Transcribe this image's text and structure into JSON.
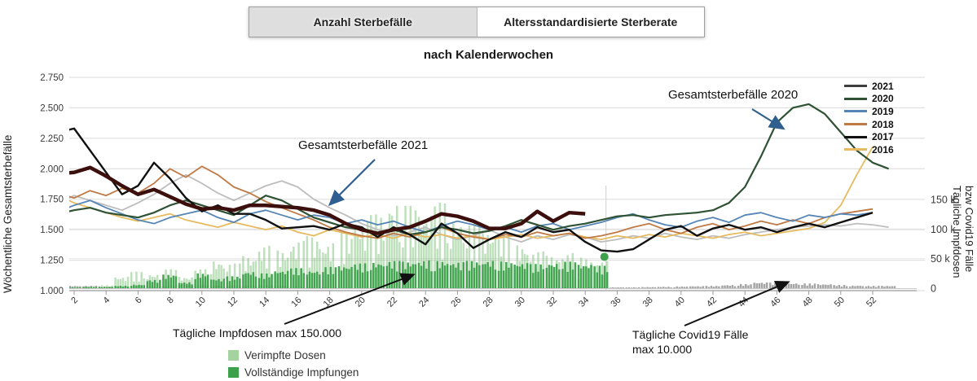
{
  "tabs": [
    {
      "label": "Anzahl Sterbefälle",
      "active": true
    },
    {
      "label": "Altersstandardisierte Sterberate",
      "active": false
    }
  ],
  "title": "nach Kalenderwochen",
  "y_axis_left": {
    "title": "Wöchentliche Gesamtsterbefälle",
    "ticks": [
      {
        "label": "2.750",
        "value": 2750
      },
      {
        "label": "2.500",
        "value": 2500
      },
      {
        "label": "2.250",
        "value": 2250
      },
      {
        "label": "2.000",
        "value": 2000
      },
      {
        "label": "1.750",
        "value": 1750
      },
      {
        "label": "1.500",
        "value": 1500
      },
      {
        "label": "1.250",
        "value": 1250
      },
      {
        "label": "1.000",
        "value": 1000
      }
    ]
  },
  "y_axis_right": {
    "title_line1": "Tägliche Impfdosen",
    "title_line2": "bzw Covid19 Fälle",
    "ticks": [
      {
        "label": "150 k",
        "value_k": 150
      },
      {
        "label": "100 k",
        "value_k": 100
      },
      {
        "label": "50 k",
        "value_k": 50
      },
      {
        "label": "0",
        "value_k": 0
      }
    ]
  },
  "legend": [
    {
      "label": "2021",
      "color": "#3f3f3f"
    },
    {
      "label": "2020",
      "color": "#2e5233"
    },
    {
      "label": "2019",
      "color": "#5585b5"
    },
    {
      "label": "2018",
      "color": "#c07a45"
    },
    {
      "label": "2017",
      "color": "#101010"
    },
    {
      "label": "2016",
      "color": "#e6bb5f"
    }
  ],
  "bottom_legend": [
    {
      "label": "Verimpfte Dosen",
      "color": "#a5d3a0"
    },
    {
      "label": "Vollständige Impfungen",
      "color": "#3da14b"
    }
  ],
  "annotations": {
    "gesamt_2021": "Gesamtsterbefälle 2021",
    "gesamt_2020": "Gesamtsterbefälle 2020",
    "impfdosen": "Tägliche Impfdosen max 150.000",
    "covid_line1": "Tägliche Covid19 Fälle",
    "covid_line2": "max 10.000"
  },
  "chart_data": {
    "type": "line",
    "x_label": "Kalenderwoche",
    "x_ticks": [
      2,
      4,
      6,
      8,
      10,
      12,
      14,
      16,
      18,
      20,
      22,
      24,
      26,
      28,
      30,
      32,
      34,
      36,
      38,
      40,
      42,
      44,
      46,
      48,
      50,
      52
    ],
    "y_left_range": [
      1000,
      2750
    ],
    "y_right_range_k": [
      0,
      150
    ],
    "reference_line_week": 35.3,
    "series": [
      {
        "name": "2021",
        "color": "#3c0f0d",
        "width": 4.5,
        "z": 7,
        "values": [
          1960,
          1970,
          2010,
          1940,
          1860,
          1790,
          1830,
          1770,
          1710,
          1670,
          1680,
          1660,
          1700,
          1700,
          1690,
          1680,
          1660,
          1620,
          1550,
          1500,
          1470,
          1500,
          1520,
          1570,
          1630,
          1610,
          1570,
          1510,
          1510,
          1550,
          1650,
          1570,
          1640,
          1630
        ]
      },
      {
        "name": "2020",
        "color": "#2e5233",
        "width": 2.2,
        "z": 5,
        "values": [
          1630,
          1660,
          1680,
          1640,
          1620,
          1600,
          1640,
          1700,
          1740,
          1700,
          1660,
          1620,
          1700,
          1780,
          1740,
          1670,
          1600,
          1560,
          1520,
          1500,
          1470,
          1500,
          1460,
          1480,
          1520,
          1500,
          1470,
          1490,
          1530,
          1580,
          1540,
          1500,
          1530,
          1550,
          1580,
          1610,
          1620,
          1600,
          1620,
          1630,
          1640,
          1660,
          1720,
          1850,
          2100,
          2380,
          2500,
          2530,
          2450,
          2300,
          2150,
          2050,
          2000
        ]
      },
      {
        "name": "2019",
        "color": "#5585b5",
        "width": 1.8,
        "z": 4,
        "values": [
          1650,
          1700,
          1740,
          1680,
          1630,
          1580,
          1550,
          1600,
          1630,
          1660,
          1600,
          1560,
          1630,
          1660,
          1620,
          1580,
          1620,
          1600,
          1550,
          1580,
          1540,
          1570,
          1520,
          1480,
          1530,
          1570,
          1540,
          1500,
          1520,
          1480,
          1530,
          1550,
          1500,
          1530,
          1560,
          1600,
          1630,
          1580,
          1540,
          1520,
          1570,
          1600,
          1560,
          1620,
          1640,
          1600,
          1570,
          1620,
          1600,
          1630,
          1620,
          1640
        ]
      },
      {
        "name": "2018",
        "color": "#c07a45",
        "width": 1.8,
        "z": 3,
        "values": [
          1800,
          1760,
          1820,
          1780,
          1840,
          1800,
          1880,
          2000,
          1930,
          2020,
          1950,
          1850,
          1800,
          1730,
          1680,
          1630,
          1580,
          1520,
          1480,
          1450,
          1430,
          1470,
          1440,
          1480,
          1520,
          1470,
          1440,
          1420,
          1460,
          1440,
          1480,
          1450,
          1470,
          1430,
          1450,
          1480,
          1520,
          1550,
          1500,
          1470,
          1520,
          1550,
          1500,
          1530,
          1570,
          1540,
          1580,
          1550,
          1600,
          1630,
          1650,
          1670
        ]
      },
      {
        "name": "2017",
        "color": "#101010",
        "width": 2.4,
        "z": 6,
        "values": [
          2300,
          2330,
          2150,
          1970,
          1790,
          1860,
          2050,
          1920,
          1760,
          1650,
          1700,
          1630,
          1630,
          1580,
          1510,
          1520,
          1530,
          1500,
          1550,
          1520,
          1440,
          1520,
          1460,
          1380,
          1550,
          1470,
          1350,
          1420,
          1480,
          1440,
          1520,
          1480,
          1500,
          1400,
          1330,
          1320,
          1340,
          1420,
          1500,
          1530,
          1450,
          1510,
          1540,
          1500,
          1520,
          1480,
          1520,
          1550,
          1520,
          1560,
          1600,
          1640
        ]
      },
      {
        "name": "2016",
        "color": "#e6bb5f",
        "width": 1.8,
        "z": 2,
        "values": [
          1780,
          1720,
          1680,
          1640,
          1600,
          1570,
          1600,
          1630,
          1580,
          1550,
          1520,
          1560,
          1530,
          1500,
          1530,
          1480,
          1450,
          1500,
          1470,
          1440,
          1460,
          1430,
          1470,
          1440,
          1460,
          1430,
          1450,
          1420,
          1440,
          1460,
          1430,
          1450,
          1470,
          1440,
          1420,
          1450,
          1430,
          1460,
          1440,
          1470,
          1450,
          1430,
          1460,
          1480,
          1450,
          1470,
          1490,
          1510,
          1560,
          1700,
          1950,
          2180
        ]
      },
      {
        "name": "unbeschriftet-grau",
        "color": "#bdbdbd",
        "width": 1.8,
        "z": 1,
        "values": [
          1720,
          1780,
          1740,
          1700,
          1660,
          1720,
          1790,
          1880,
          1950,
          1880,
          1800,
          1740,
          1800,
          1860,
          1900,
          1850,
          1750,
          1680,
          1620,
          1550,
          1500,
          1450,
          1480,
          1520,
          1460,
          1420,
          1450,
          1500,
          1440,
          1400,
          1450,
          1420,
          1460,
          1440,
          1400,
          1420,
          1450,
          1430,
          1470,
          1440,
          1420,
          1450,
          1430,
          1460,
          1480,
          1500,
          1520,
          1530,
          1540,
          1530,
          1550,
          1540,
          1520
        ]
      }
    ],
    "bars": {
      "unit": "Tausend pro Tag (rechte Achse)",
      "verimpfte_dosen_k": [
        3,
        3,
        4,
        5,
        20,
        28,
        25,
        32,
        20,
        32,
        48,
        42,
        55,
        72,
        65,
        80,
        88,
        78,
        95,
        115,
        125,
        150,
        140,
        130,
        145,
        120,
        110,
        100,
        92,
        75,
        62,
        55,
        60,
        52,
        46
      ],
      "vollstaendige_impfungen_k": [
        1,
        1,
        2,
        2,
        4,
        6,
        14,
        23,
        10,
        25,
        16,
        20,
        28,
        25,
        30,
        34,
        30,
        36,
        38,
        42,
        44,
        46,
        45,
        47,
        46,
        44,
        46,
        47,
        45,
        43,
        41,
        43,
        45,
        41,
        38
      ],
      "covid_faelle_k": [
        5,
        4,
        4,
        3,
        4,
        3,
        3,
        4,
        6,
        6,
        5,
        5,
        4,
        5,
        4,
        3,
        2,
        2,
        1.5,
        1,
        1,
        1,
        0.8,
        0.8,
        0.6,
        0.5,
        0.5,
        0.6,
        0.8,
        1,
        1.2,
        1.5,
        1.8,
        2,
        2,
        1.5,
        1.5,
        2,
        2.5,
        3,
        3.5,
        4,
        5.5,
        7,
        10,
        9.5,
        8.5,
        8,
        7,
        5.5,
        4.5,
        4,
        4
      ]
    },
    "end_marker": {
      "week": 35.2,
      "value_k": 53,
      "color": "#3da14b"
    }
  }
}
